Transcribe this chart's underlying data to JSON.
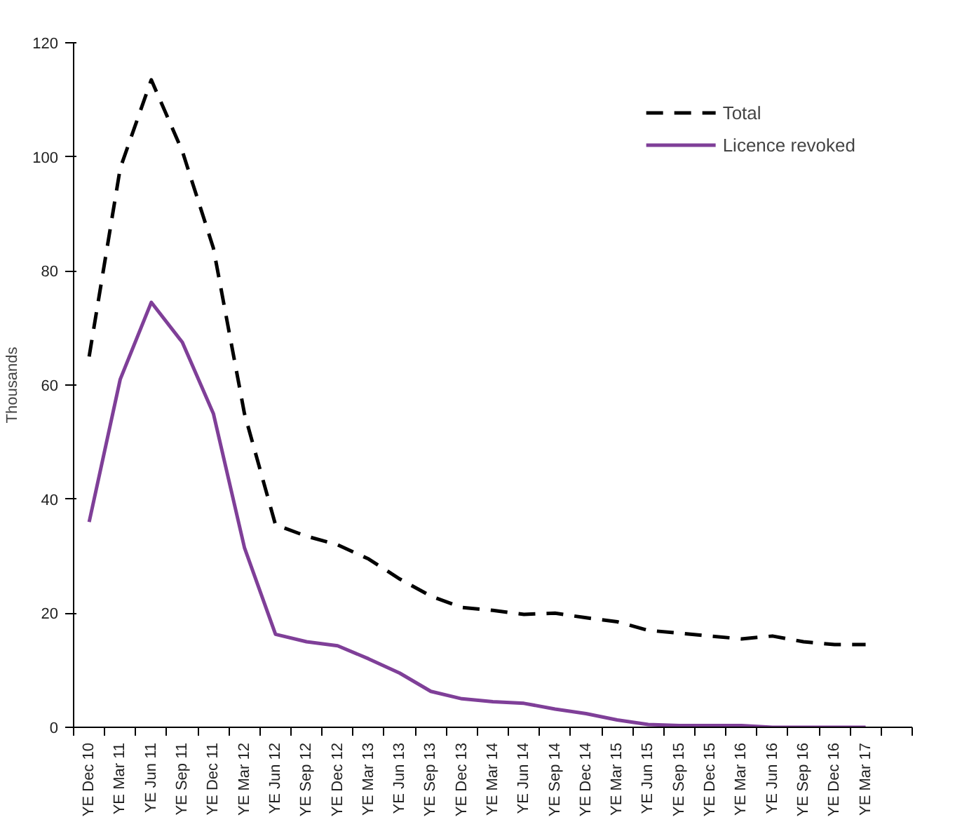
{
  "chart_data": {
    "type": "line",
    "ylabel": "Thousands",
    "categories": [
      "YE Dec 10",
      "YE Mar 11",
      "YE Jun 11",
      "YE Sep 11",
      "YE Dec 11",
      "YE Mar 12",
      "YE Jun 12",
      "YE Sep 12",
      "YE Dec 12",
      "YE Mar 13",
      "YE Jun 13",
      "YE Sep 13",
      "YE Dec 13",
      "YE Mar 14",
      "YE Jun 14",
      "YE Sep 14",
      "YE Dec 14",
      "YE Mar 15",
      "YE Jun 15",
      "YE Sep 15",
      "YE Dec 15",
      "YE Mar 16",
      "YE Jun 16",
      "YE Sep 16",
      "YE Dec 16",
      "YE Mar 17",
      null
    ],
    "series": [
      {
        "name": "Total",
        "color": "#000000",
        "line_style": "dashed",
        "values": [
          65,
          98,
          113.5,
          101,
          84,
          55,
          35.5,
          33.5,
          32,
          29.5,
          26,
          23,
          21,
          20.5,
          19.8,
          20,
          19.2,
          18.5,
          17,
          16.5,
          16,
          15.5,
          16,
          15,
          14.5,
          14.5,
          null
        ]
      },
      {
        "name": "Licence revoked",
        "color": "#7f3f98",
        "line_style": "solid",
        "values": [
          36,
          61,
          74.5,
          67.5,
          55,
          31.5,
          16.3,
          15,
          14.3,
          12,
          9.5,
          6.3,
          5,
          4.5,
          4.2,
          3.2,
          2.4,
          1.3,
          0.5,
          0.3,
          0.3,
          0.3,
          0,
          0,
          0,
          0,
          null
        ]
      }
    ],
    "ylim": [
      0,
      120
    ],
    "yticks": [
      0,
      20,
      40,
      60,
      80,
      100,
      120
    ],
    "grid": false,
    "legend": "top right",
    "marker": "none"
  }
}
